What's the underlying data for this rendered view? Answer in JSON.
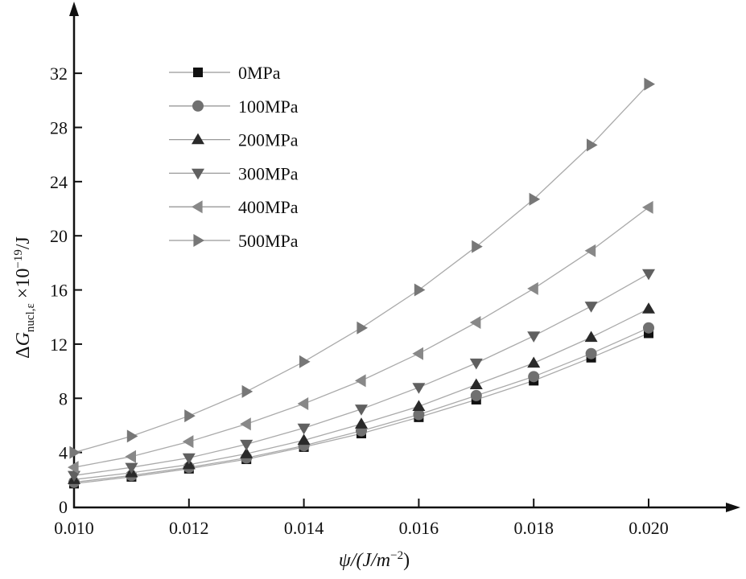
{
  "chart_data": {
    "type": "line",
    "title": "",
    "xlabel": {
      "main": "ψ/(J/m",
      "sup": "−2",
      "end": ")"
    },
    "ylabel": {
      "delta": "Δ",
      "G": "G",
      "sub": "nucl,ε",
      "mult": " ×10",
      "sup": "−19",
      "unit": "/J"
    },
    "xlim": [
      0.01,
      0.0215
    ],
    "ylim": [
      0,
      36
    ],
    "xticks": [
      "0.010",
      "0.012",
      "0.014",
      "0.016",
      "0.018",
      "0.020"
    ],
    "yticks": [
      "0",
      "4",
      "8",
      "12",
      "16",
      "20",
      "24",
      "28",
      "32"
    ],
    "x": [
      0.01,
      0.011,
      0.012,
      0.013,
      0.014,
      0.015,
      0.016,
      0.017,
      0.018,
      0.019,
      0.02
    ],
    "legend_position": "top-left",
    "series": [
      {
        "name": "0MPa",
        "marker": "square",
        "color": "#111111",
        "values": [
          1.7,
          2.2,
          2.8,
          3.5,
          4.4,
          5.4,
          6.6,
          7.9,
          9.3,
          11.0,
          12.8
        ]
      },
      {
        "name": "100MPa",
        "marker": "circle",
        "color": "#707070",
        "values": [
          1.8,
          2.3,
          2.9,
          3.6,
          4.5,
          5.6,
          6.8,
          8.2,
          9.6,
          11.3,
          13.2
        ]
      },
      {
        "name": "200MPa",
        "marker": "triangle-up",
        "color": "#2a2a2a",
        "values": [
          2.0,
          2.5,
          3.1,
          3.9,
          4.9,
          6.1,
          7.4,
          9.0,
          10.6,
          12.5,
          14.6
        ]
      },
      {
        "name": "300MPa",
        "marker": "triangle-down",
        "color": "#606060",
        "values": [
          2.3,
          2.9,
          3.6,
          4.6,
          5.8,
          7.2,
          8.8,
          10.6,
          12.6,
          14.8,
          17.2
        ]
      },
      {
        "name": "400MPa",
        "marker": "triangle-left",
        "color": "#888888",
        "values": [
          2.9,
          3.7,
          4.8,
          6.1,
          7.6,
          9.3,
          11.3,
          13.6,
          16.1,
          18.9,
          22.1
        ]
      },
      {
        "name": "500MPa",
        "marker": "triangle-right",
        "color": "#777777",
        "values": [
          4.0,
          5.2,
          6.7,
          8.5,
          10.7,
          13.2,
          16.0,
          19.2,
          22.7,
          26.7,
          31.2
        ]
      }
    ]
  }
}
